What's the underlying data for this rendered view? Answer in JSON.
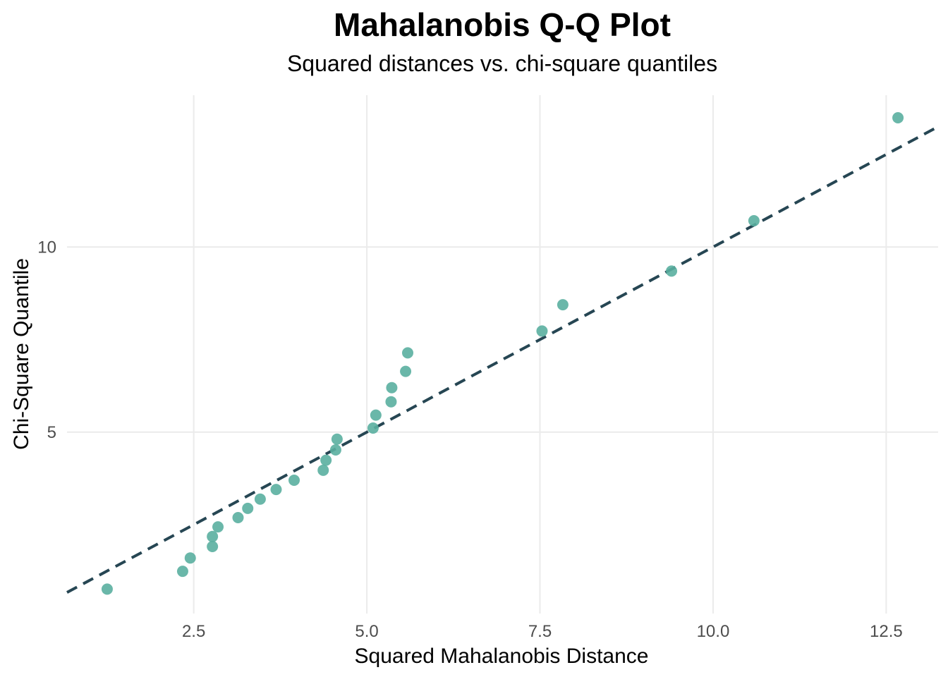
{
  "chart_data": {
    "type": "scatter",
    "title": "Mahalanobis Q-Q Plot",
    "subtitle": "Squared distances vs. chi-square quantiles",
    "xlabel": "Squared Mahalanobis Distance",
    "ylabel": "Chi-Square Quantile",
    "xlim": [
      0.67,
      13.25
    ],
    "ylim": [
      0.1,
      14.1
    ],
    "x_ticks": [
      2.5,
      5.0,
      7.5,
      10.0,
      12.5
    ],
    "x_tick_labels": [
      "2.5",
      "5.0",
      "7.5",
      "10.0",
      "12.5"
    ],
    "y_ticks": [
      5,
      10
    ],
    "y_tick_labels": [
      "5",
      "10"
    ],
    "grid": true,
    "point_color": "#5aafa0",
    "line_color": "#264653",
    "reference_line": {
      "type": "dashed",
      "slope": 1,
      "intercept": 0
    },
    "points": [
      {
        "x": 1.25,
        "y": 0.76
      },
      {
        "x": 2.34,
        "y": 1.24
      },
      {
        "x": 2.45,
        "y": 1.6
      },
      {
        "x": 2.77,
        "y": 1.91
      },
      {
        "x": 2.77,
        "y": 2.18
      },
      {
        "x": 2.85,
        "y": 2.44
      },
      {
        "x": 3.14,
        "y": 2.69
      },
      {
        "x": 3.28,
        "y": 2.94
      },
      {
        "x": 3.46,
        "y": 3.19
      },
      {
        "x": 3.69,
        "y": 3.45
      },
      {
        "x": 3.95,
        "y": 3.7
      },
      {
        "x": 4.37,
        "y": 3.97
      },
      {
        "x": 4.41,
        "y": 4.24
      },
      {
        "x": 4.55,
        "y": 4.52
      },
      {
        "x": 4.57,
        "y": 4.81
      },
      {
        "x": 5.09,
        "y": 5.11
      },
      {
        "x": 5.13,
        "y": 5.46
      },
      {
        "x": 5.35,
        "y": 5.82
      },
      {
        "x": 5.36,
        "y": 6.2
      },
      {
        "x": 5.56,
        "y": 6.64
      },
      {
        "x": 5.59,
        "y": 7.14
      },
      {
        "x": 7.53,
        "y": 7.73
      },
      {
        "x": 7.83,
        "y": 8.44
      },
      {
        "x": 9.4,
        "y": 9.35
      },
      {
        "x": 10.59,
        "y": 10.71
      },
      {
        "x": 12.67,
        "y": 13.49
      }
    ]
  }
}
